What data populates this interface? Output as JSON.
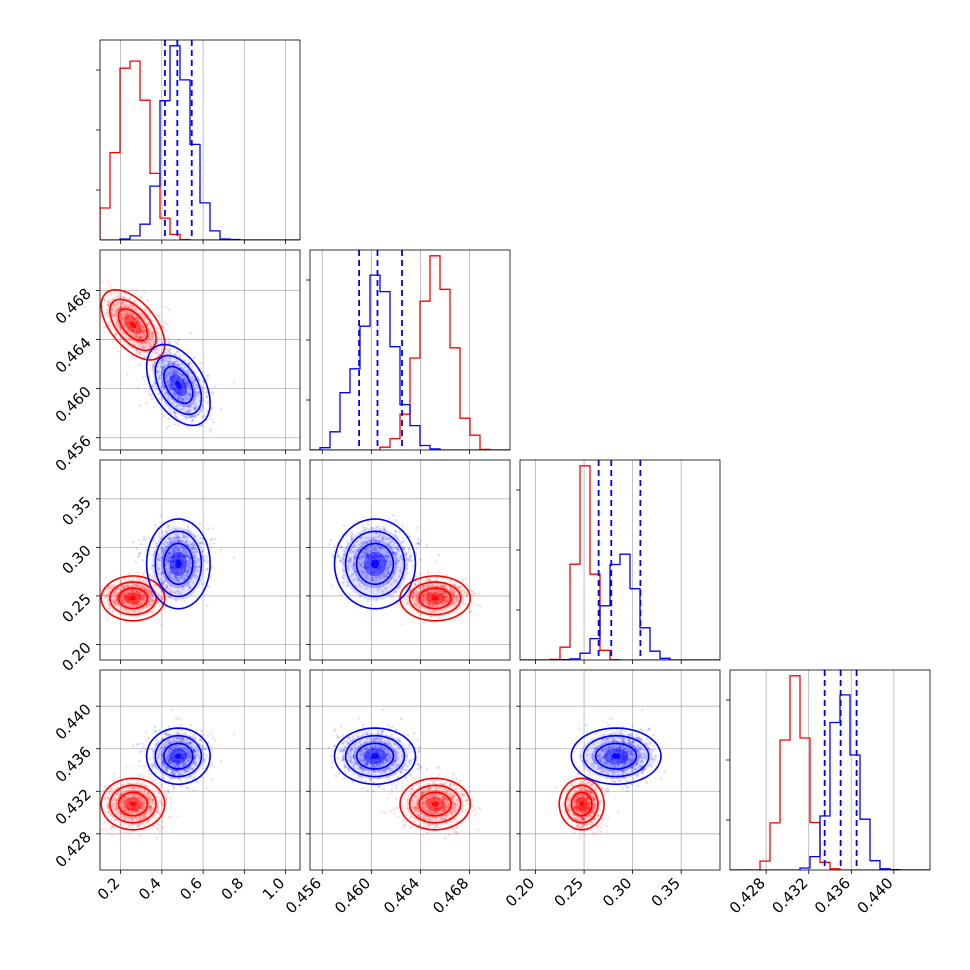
{
  "chart_data": {
    "type": "corner",
    "parameters": [
      {
        "range": [
          0.1,
          1.07
        ],
        "ticks": [
          0.2,
          0.4,
          0.6,
          0.8,
          1.0
        ],
        "tick_labels": [
          "0.2",
          "0.4",
          "0.6",
          "0.8",
          "1.0"
        ]
      },
      {
        "range": [
          0.455,
          0.4713
        ],
        "ticks": [
          0.456,
          0.46,
          0.464,
          0.468
        ],
        "tick_labels": [
          "0.456",
          "0.460",
          "0.464",
          "0.468"
        ]
      },
      {
        "range": [
          0.184,
          0.39
        ],
        "ticks": [
          0.2,
          0.25,
          0.3,
          0.35
        ],
        "tick_labels": [
          "0.20",
          "0.25",
          "0.30",
          "0.35"
        ]
      },
      {
        "range": [
          0.4246,
          0.4434
        ],
        "ticks": [
          0.428,
          0.432,
          0.436,
          0.44
        ],
        "tick_labels": [
          "0.428",
          "0.432",
          "0.436",
          "0.440"
        ]
      }
    ],
    "series": [
      {
        "color": "#ff0000",
        "mean": [
          0.26,
          0.4652,
          0.2475,
          0.4308
        ],
        "sigma": [
          0.07,
          0.0013,
          0.0105,
          0.0011
        ],
        "correlation": [
          [
            1.0,
            -0.55,
            0.0,
            0.0
          ],
          [
            -0.55,
            1.0,
            0.0,
            0.0
          ],
          [
            0.0,
            0.0,
            1.0,
            0.0
          ],
          [
            0.0,
            0.0,
            0.0,
            1.0
          ]
        ]
      },
      {
        "color": "#0000ff",
        "mean": [
          0.48,
          0.4603,
          0.283,
          0.4353
        ],
        "sigma": [
          0.07,
          0.0015,
          0.021,
          0.0012
        ],
        "correlation": [
          [
            1.0,
            -0.45,
            0.0,
            0.0
          ],
          [
            -0.45,
            1.0,
            0.0,
            0.0
          ],
          [
            0.0,
            0.0,
            1.0,
            0.0
          ],
          [
            0.0,
            0.0,
            0.0,
            1.0
          ]
        ],
        "quantile_lines": [
          [
            0.415,
            0.475,
            0.545
          ],
          [
            0.459,
            0.4605,
            0.4625
          ],
          [
            0.265,
            0.278,
            0.308
          ],
          [
            0.4335,
            0.435,
            0.4365
          ]
        ]
      }
    ],
    "histogram_bins": 20,
    "grid": true
  }
}
